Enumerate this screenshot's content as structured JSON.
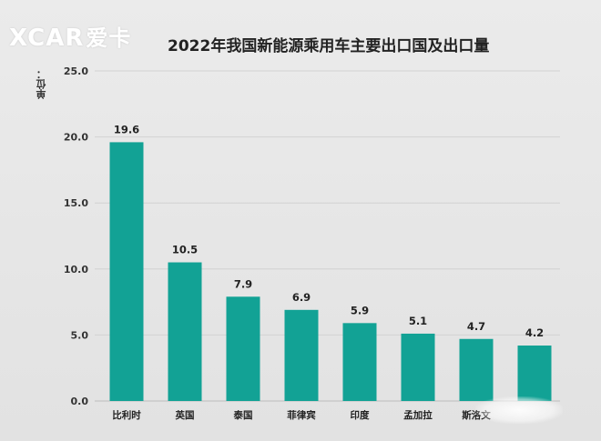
{
  "branding": {
    "logo_text": "XCAR",
    "logo_cn": "爱卡"
  },
  "chart_data": {
    "type": "bar",
    "title": "2022年我国新能源乘用车主要出口国及出口量",
    "ylabel": "单位：",
    "xlabel": "",
    "categories": [
      "比利时",
      "英国",
      "泰国",
      "菲律宾",
      "印度",
      "孟加拉",
      "斯洛文",
      ""
    ],
    "values": [
      19.6,
      10.5,
      7.9,
      6.9,
      5.9,
      5.1,
      4.7,
      4.2
    ],
    "value_labels": [
      "19.6",
      "10.5",
      "7.9",
      "6.9",
      "5.9",
      "5.1",
      "4.7",
      "4.2"
    ],
    "ylim": [
      0,
      25
    ],
    "yticks": [
      "0.0",
      "5.0",
      "10.0",
      "15.0",
      "20.0",
      "25.0"
    ],
    "grid": true,
    "legend": "none",
    "bar_color": "#12a295"
  }
}
